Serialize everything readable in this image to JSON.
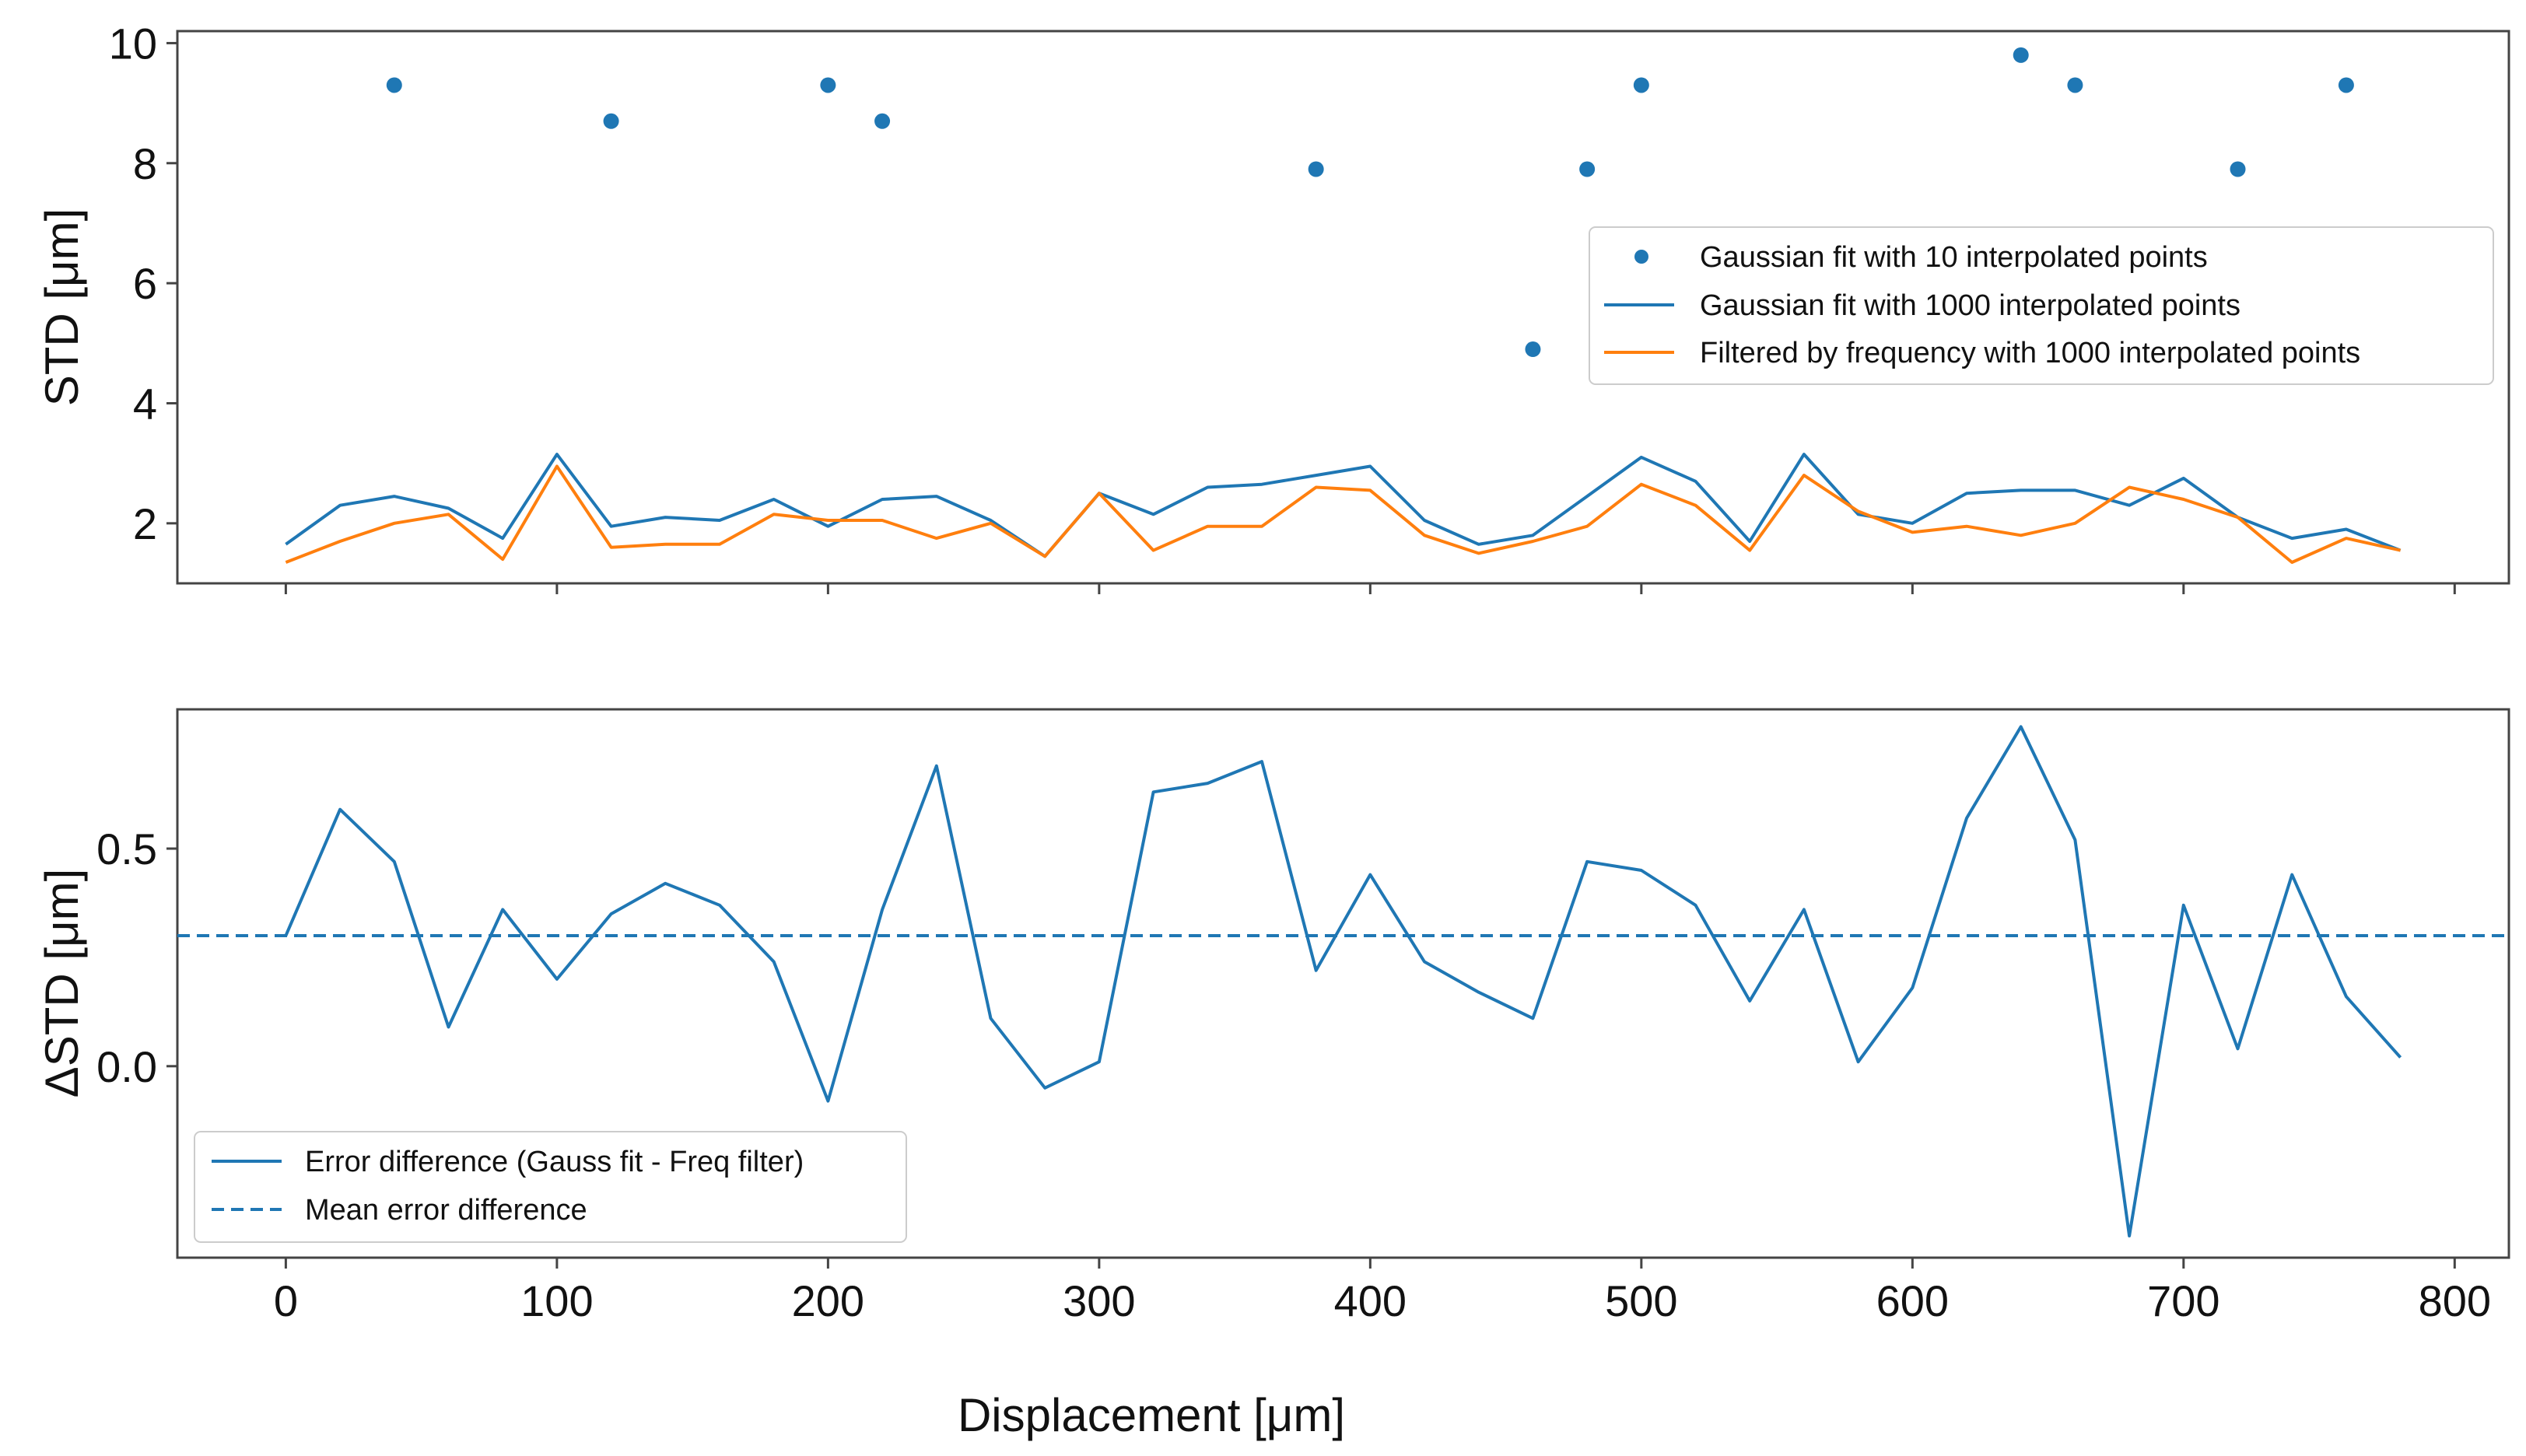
{
  "chart_data": [
    {
      "type": "scatter+line",
      "xlabel": "",
      "ylabel": "STD [μm]",
      "xlim": [
        -40,
        820
      ],
      "ylim": [
        1.0,
        10.2
      ],
      "xticks": [
        "0",
        "100",
        "200",
        "300",
        "400",
        "500",
        "600",
        "700",
        "800"
      ],
      "xtick_values": [
        0,
        100,
        200,
        300,
        400,
        500,
        600,
        700,
        800
      ],
      "yticks": [
        "2",
        "4",
        "6",
        "8",
        "10"
      ],
      "ytick_values": [
        2,
        4,
        6,
        8,
        10
      ],
      "show_xtick_labels": false,
      "legend_position": "center-right",
      "series": [
        {
          "name": "Gaussian fit with 10 interpolated points",
          "kind": "scatter",
          "color": "#1f77b4",
          "x": [
            40,
            120,
            200,
            220,
            380,
            460,
            480,
            500,
            640,
            660,
            720,
            760
          ],
          "y": [
            9.3,
            8.7,
            9.3,
            8.7,
            7.9,
            4.9,
            7.9,
            9.3,
            9.8,
            9.3,
            7.9,
            9.3
          ]
        },
        {
          "name": "Gaussian fit with 1000 interpolated points",
          "kind": "line",
          "color": "#1f77b4",
          "x": [
            0,
            20,
            40,
            60,
            80,
            100,
            120,
            140,
            160,
            180,
            200,
            220,
            240,
            260,
            280,
            300,
            320,
            340,
            360,
            380,
            400,
            420,
            440,
            460,
            480,
            500,
            520,
            540,
            560,
            580,
            600,
            620,
            640,
            660,
            680,
            700,
            720,
            740,
            760,
            780
          ],
          "y": [
            1.65,
            2.3,
            2.45,
            2.25,
            1.75,
            3.15,
            1.95,
            2.1,
            2.05,
            2.4,
            1.95,
            2.4,
            2.45,
            2.05,
            1.45,
            2.5,
            2.15,
            2.6,
            2.65,
            2.8,
            2.95,
            2.05,
            1.65,
            1.8,
            2.45,
            3.1,
            2.7,
            1.7,
            3.15,
            2.15,
            2.0,
            2.5,
            2.55,
            2.55,
            2.3,
            2.75,
            2.1,
            1.75,
            1.9,
            1.55
          ]
        },
        {
          "name": "Filtered by frequency with 1000 interpolated points",
          "kind": "line",
          "color": "#ff7f0e",
          "x": [
            0,
            20,
            40,
            60,
            80,
            100,
            120,
            140,
            160,
            180,
            200,
            220,
            240,
            260,
            280,
            300,
            320,
            340,
            360,
            380,
            400,
            420,
            440,
            460,
            480,
            500,
            520,
            540,
            560,
            580,
            600,
            620,
            640,
            660,
            680,
            700,
            720,
            740,
            760,
            780
          ],
          "y": [
            1.35,
            1.7,
            2.0,
            2.15,
            1.4,
            2.95,
            1.6,
            1.65,
            1.65,
            2.15,
            2.05,
            2.05,
            1.75,
            2.0,
            1.45,
            2.5,
            1.55,
            1.95,
            1.95,
            2.6,
            2.55,
            1.8,
            1.5,
            1.7,
            1.95,
            2.65,
            2.3,
            1.55,
            2.8,
            2.2,
            1.85,
            1.95,
            1.8,
            2.0,
            2.6,
            2.4,
            2.1,
            1.35,
            1.75,
            1.55
          ]
        }
      ]
    },
    {
      "type": "line",
      "xlabel": "Displacement [μm]",
      "ylabel": "ΔSTD [μm]",
      "xlim": [
        -40,
        820
      ],
      "ylim": [
        -0.44,
        0.82
      ],
      "xticks": [
        "0",
        "100",
        "200",
        "300",
        "400",
        "500",
        "600",
        "700",
        "800"
      ],
      "xtick_values": [
        0,
        100,
        200,
        300,
        400,
        500,
        600,
        700,
        800
      ],
      "yticks": [
        "0.0",
        "0.5"
      ],
      "ytick_values": [
        0.0,
        0.5
      ],
      "show_xtick_labels": true,
      "legend_position": "lower-left",
      "series": [
        {
          "name": "Error difference (Gauss fit - Freq filter)",
          "kind": "line",
          "color": "#1f77b4",
          "x": [
            0,
            20,
            40,
            60,
            80,
            100,
            120,
            140,
            160,
            180,
            200,
            220,
            240,
            260,
            280,
            300,
            320,
            340,
            360,
            380,
            400,
            420,
            440,
            460,
            480,
            500,
            520,
            540,
            560,
            580,
            600,
            620,
            640,
            660,
            680,
            700,
            720,
            740,
            760,
            780
          ],
          "y": [
            0.3,
            0.59,
            0.47,
            0.09,
            0.36,
            0.2,
            0.35,
            0.42,
            0.37,
            0.24,
            -0.08,
            0.36,
            0.69,
            0.11,
            -0.05,
            0.01,
            0.63,
            0.65,
            0.7,
            0.22,
            0.44,
            0.24,
            0.17,
            0.11,
            0.47,
            0.45,
            0.37,
            0.15,
            0.36,
            0.01,
            0.18,
            0.57,
            0.78,
            0.52,
            -0.39,
            0.37,
            0.04,
            0.44,
            0.16,
            0.02
          ]
        },
        {
          "name": "Mean error difference",
          "kind": "hline",
          "style": "dashed",
          "color": "#1f77b4",
          "y": 0.3
        }
      ]
    }
  ]
}
